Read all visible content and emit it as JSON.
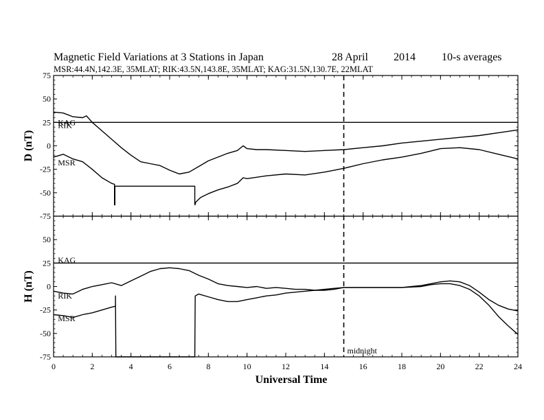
{
  "chart_data": {
    "type": "line",
    "title": "Magnetic Field Variations at 3 Stations in Japan",
    "date_text": "28  April",
    "year_text": "2014",
    "averaging_text": "10-s averages",
    "subtitle": "MSR:44.4N,142.3E, 35MLAT;  RIK:43.5N,143.8E, 35MLAT;  KAG:31.5N,130.7E, 22MLAT",
    "xlabel": "Universal Time",
    "xlim": [
      0,
      24
    ],
    "xticks": [
      0,
      2,
      4,
      6,
      8,
      10,
      12,
      14,
      16,
      18,
      20,
      22,
      24
    ],
    "annotation": {
      "x": 15,
      "label": "midnight"
    },
    "panels": [
      {
        "ylabel": "D (nT)",
        "ylim": [
          -75,
          75
        ],
        "yticks": [
          -75,
          -50,
          -25,
          0,
          25,
          50,
          75
        ],
        "label_entries": [
          {
            "name": "KAG",
            "x": 0.15,
            "y": 25
          },
          {
            "name": "RIK",
            "x": 0.15,
            "y": 22
          },
          {
            "name": "MSR",
            "x": 0.15,
            "y": -18
          }
        ],
        "series": [
          {
            "name": "KAG",
            "x": [
              0,
              24
            ],
            "y": [
              25,
              25
            ]
          },
          {
            "name": "RIK",
            "x": [
              0,
              0.5,
              1,
              1.5,
              1.7,
              2,
              2.5,
              3,
              3.5,
              4,
              4.5,
              5,
              5.5,
              6,
              6.5,
              7,
              7.5,
              8,
              8.5,
              9,
              9.5,
              9.8,
              10,
              10.5,
              11,
              12,
              13,
              14,
              15,
              16,
              17,
              18,
              19,
              20,
              21,
              22,
              23,
              24
            ],
            "y": [
              36,
              35,
              31,
              30,
              32,
              25,
              16,
              7,
              -2,
              -10,
              -17,
              -19,
              -21,
              -26,
              -30,
              -28,
              -22,
              -16,
              -12,
              -8,
              -5,
              0,
              -3,
              -4,
              -4,
              -5,
              -6,
              -5,
              -4,
              -2,
              0,
              3,
              5,
              7,
              9,
              11,
              14,
              17
            ]
          },
          {
            "name": "MSR",
            "x": [
              0,
              0.5,
              1,
              1.5,
              2,
              2.5,
              3,
              3.15,
              3.15,
              3.17,
              3.17,
              7.3,
              7.3,
              7.31,
              7.35,
              7.6,
              8,
              8.5,
              9,
              9.5,
              9.8,
              10,
              11,
              12,
              13,
              14,
              15,
              16,
              17,
              18,
              19,
              20,
              21,
              22,
              23,
              24
            ],
            "y": [
              -12,
              -9,
              -14,
              -17,
              -25,
              -34,
              -40,
              -41,
              -63,
              -63,
              -43,
              -43,
              -61,
              -63,
              -60,
              -55,
              -51,
              -47,
              -44,
              -40,
              -34,
              -35,
              -32,
              -30,
              -31,
              -28,
              -24,
              -19,
              -15,
              -12,
              -8,
              -3,
              -2,
              -4,
              -9,
              -14
            ]
          }
        ]
      },
      {
        "ylabel": "H (nT)",
        "ylim": [
          -75,
          75
        ],
        "yticks": [
          -75,
          -50,
          -25,
          0,
          25,
          50,
          75
        ],
        "label_entries": [
          {
            "name": "KAG",
            "x": 0.15,
            "y": 28
          },
          {
            "name": "RIK",
            "x": 0.15,
            "y": -10
          },
          {
            "name": "MSR",
            "x": 0.15,
            "y": -34
          }
        ],
        "series": [
          {
            "name": "KAG",
            "x": [
              0,
              24
            ],
            "y": [
              25,
              25
            ]
          },
          {
            "name": "RIK",
            "x": [
              0,
              0.5,
              1,
              1.5,
              2,
              2.5,
              3,
              3.5,
              4,
              4.5,
              5,
              5.5,
              6,
              6.5,
              7,
              7.5,
              8,
              8.5,
              9,
              9.5,
              10,
              10.5,
              11,
              11.5,
              12,
              12.5,
              13,
              13.5,
              14,
              14.5,
              15,
              15.5,
              16,
              17,
              18,
              19,
              19.5,
              20,
              20.5,
              21,
              21.5,
              22,
              22.5,
              23,
              23.5,
              24
            ],
            "y": [
              -5,
              -7,
              -8,
              -3,
              0,
              2,
              4,
              1,
              6,
              11,
              16,
              19,
              20,
              19,
              17,
              12,
              8,
              3,
              1,
              0,
              -1,
              0,
              -2,
              -1,
              -2,
              -3,
              -3,
              -4,
              -4,
              -3,
              -1,
              -1,
              -1,
              -1,
              -1,
              1,
              3,
              5,
              6,
              5,
              1,
              -6,
              -14,
              -20,
              -24,
              -26
            ]
          },
          {
            "name": "MSR",
            "x": [
              0,
              0.5,
              1,
              1.5,
              2,
              2.5,
              3,
              3.2,
              3.2,
              3.22,
              3.22,
              7.3,
              7.3,
              7.32,
              7.5,
              8,
              8.5,
              9,
              9.5,
              10,
              10.5,
              11,
              11.5,
              12,
              12.5,
              13,
              13.5,
              14,
              14.5,
              15,
              16,
              17,
              18,
              19,
              19.5,
              20,
              20.5,
              21,
              21.5,
              22,
              22.5,
              23,
              23.5,
              24
            ],
            "y": [
              -30,
              -31,
              -33,
              -30,
              -28,
              -25,
              -22,
              -21,
              -10,
              -75,
              -75,
              -75,
              -75,
              -10,
              -8,
              -11,
              -14,
              -16,
              -16,
              -14,
              -12,
              -10,
              -9,
              -7,
              -6,
              -5,
              -4,
              -3,
              -2,
              -1,
              -1,
              -1,
              -1,
              0,
              2,
              3,
              3,
              1,
              -3,
              -10,
              -20,
              -32,
              -42,
              -51
            ]
          }
        ]
      }
    ]
  }
}
